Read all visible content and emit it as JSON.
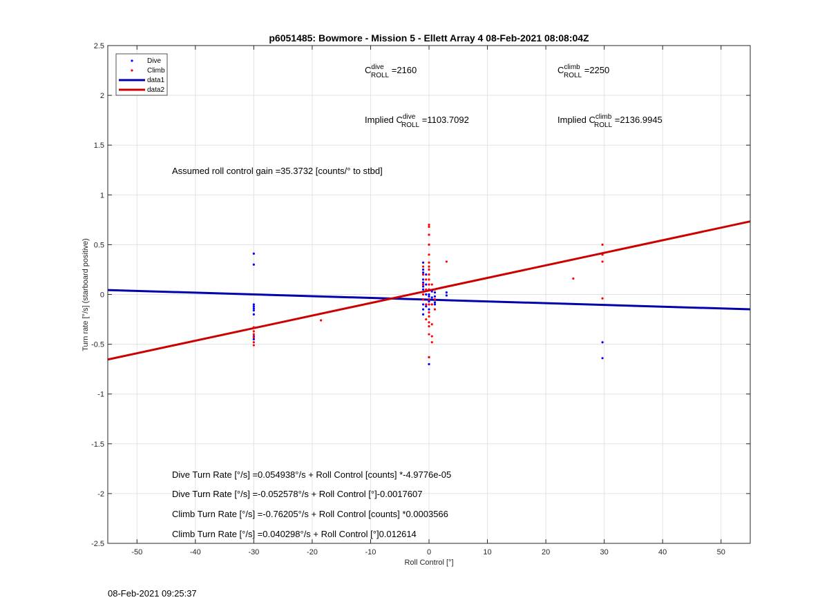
{
  "chart_data": {
    "type": "scatter",
    "title": "p6051485: Bowmore - Mission 5 - Ellett Array 4 08-Feb-2021 08:08:04Z",
    "xlabel": "Roll Control [°]",
    "ylabel": "Turn rate [°/s] (starboard positive)",
    "xlim": [
      -55,
      55
    ],
    "ylim": [
      -2.5,
      2.5
    ],
    "xticks": [
      -50,
      -40,
      -30,
      -20,
      -10,
      0,
      10,
      20,
      30,
      40,
      50
    ],
    "yticks": [
      -2.5,
      -2,
      -1.5,
      -1,
      -0.5,
      0,
      0.5,
      1,
      1.5,
      2,
      2.5
    ],
    "grid": true,
    "legend_placement": "top-left",
    "legend": [
      "Dive",
      "Climb",
      "data1",
      "data2"
    ],
    "series": [
      {
        "name": "Dive",
        "kind": "points",
        "color": "#0000ff",
        "points": [
          [
            -30,
            0.41
          ],
          [
            -30,
            0.3
          ],
          [
            -30,
            -0.1
          ],
          [
            -30,
            -0.12
          ],
          [
            -30,
            -0.14
          ],
          [
            -30,
            -0.16
          ],
          [
            -30,
            -0.2
          ],
          [
            -30,
            -0.42
          ],
          [
            -30,
            -0.45
          ],
          [
            -1,
            0.32
          ],
          [
            -1,
            0.25
          ],
          [
            -1,
            0.22
          ],
          [
            -1,
            0.2
          ],
          [
            -1,
            0.15
          ],
          [
            -1,
            0.12
          ],
          [
            -1,
            0.08
          ],
          [
            -1,
            0.05
          ],
          [
            -1,
            -0.05
          ],
          [
            -1,
            -0.1
          ],
          [
            -1,
            -0.15
          ],
          [
            -1,
            -0.2
          ],
          [
            -0.5,
            0.2
          ],
          [
            -0.5,
            0.1
          ],
          [
            -0.5,
            0.0
          ],
          [
            -0.5,
            -0.1
          ],
          [
            -0.5,
            -0.12
          ],
          [
            0,
            0.05
          ],
          [
            0,
            0.0
          ],
          [
            0,
            -0.02
          ],
          [
            0,
            -0.05
          ],
          [
            0,
            -0.07
          ],
          [
            0,
            -0.1
          ],
          [
            0,
            -0.15
          ],
          [
            0,
            -0.63
          ],
          [
            0,
            -0.7
          ],
          [
            0.5,
            0.03
          ],
          [
            0.5,
            -0.03
          ],
          [
            0.5,
            -0.1
          ],
          [
            1,
            0.05
          ],
          [
            1,
            0.02
          ],
          [
            1,
            -0.02
          ],
          [
            1,
            -0.05
          ],
          [
            1,
            -0.08
          ],
          [
            1,
            -0.1
          ],
          [
            3,
            0.02
          ],
          [
            3,
            -0.01
          ],
          [
            29.7,
            -0.48
          ],
          [
            29.7,
            -0.64
          ]
        ]
      },
      {
        "name": "Climb",
        "kind": "points",
        "color": "#ff0000",
        "points": [
          [
            -30,
            -0.33
          ],
          [
            -30,
            -0.37
          ],
          [
            -30,
            -0.4
          ],
          [
            -30,
            -0.43
          ],
          [
            -30,
            -0.48
          ],
          [
            -30,
            -0.51
          ],
          [
            -18.5,
            -0.26
          ],
          [
            -1,
            0.28
          ],
          [
            -1,
            0.2
          ],
          [
            -1,
            0.1
          ],
          [
            -1,
            0.0
          ],
          [
            -1,
            -0.05
          ],
          [
            -0.5,
            0.15
          ],
          [
            -0.5,
            0.05
          ],
          [
            -0.5,
            -0.1
          ],
          [
            -0.5,
            -0.25
          ],
          [
            0,
            0.7
          ],
          [
            0,
            0.68
          ],
          [
            0,
            0.6
          ],
          [
            0,
            0.5
          ],
          [
            0,
            0.4
          ],
          [
            0,
            0.32
          ],
          [
            0,
            0.28
          ],
          [
            0,
            0.25
          ],
          [
            0,
            0.2
          ],
          [
            0,
            0.15
          ],
          [
            0,
            0.1
          ],
          [
            0,
            0.05
          ],
          [
            0,
            -0.05
          ],
          [
            0,
            -0.1
          ],
          [
            0,
            -0.18
          ],
          [
            0,
            -0.22
          ],
          [
            0,
            -0.28
          ],
          [
            0,
            -0.32
          ],
          [
            0,
            -0.4
          ],
          [
            0,
            -0.63
          ],
          [
            0.5,
            0.1
          ],
          [
            0.5,
            -0.1
          ],
          [
            0.5,
            -0.3
          ],
          [
            0.5,
            -0.42
          ],
          [
            0.5,
            -0.48
          ],
          [
            1,
            0.05
          ],
          [
            1,
            -0.05
          ],
          [
            1,
            -0.15
          ],
          [
            3,
            0.33
          ],
          [
            24.7,
            0.16
          ],
          [
            29.7,
            0.5
          ],
          [
            29.7,
            0.4
          ],
          [
            29.7,
            0.33
          ],
          [
            29.7,
            -0.04
          ]
        ]
      },
      {
        "name": "data1",
        "kind": "line",
        "color": "#0000aa",
        "x": [
          -55,
          55
        ],
        "y": [
          0.0444,
          -0.1493
        ]
      },
      {
        "name": "data2",
        "kind": "line",
        "color": "#cc0000",
        "x": [
          -55,
          55
        ],
        "y": [
          -0.6537,
          0.7338
        ]
      }
    ],
    "annotations": {
      "c_dive": {
        "prefix": "C",
        "sup": "dive",
        "sub": "ROLL",
        "suffix": " =2160"
      },
      "c_climb": {
        "prefix": "C",
        "sup": "climb",
        "sub": "ROLL",
        "suffix": " =2250"
      },
      "implied_dive": {
        "prefix": "Implied C",
        "sup": "dive",
        "sub": "ROLL",
        "suffix": " =1103.7092"
      },
      "implied_climb": {
        "prefix": "Implied C",
        "sup": "climb",
        "sub": "ROLL",
        "suffix": " =2136.9945"
      },
      "gain": "Assumed roll control gain =35.3732 [counts/° to stbd]",
      "fit_lines": [
        "Dive Turn Rate [°/s] =0.054938°/s + Roll Control [counts] *-4.9776e-05",
        "Dive Turn Rate [°/s] =-0.052578°/s + Roll Control [°]-0.0017607",
        "Climb Turn Rate [°/s] =-0.76205°/s + Roll Control [counts] *0.0003566",
        "Climb Turn Rate [°/s] =0.040298°/s + Roll Control [°]0.012614"
      ]
    }
  },
  "footer": {
    "timestamp": "08-Feb-2021 09:25:37"
  }
}
